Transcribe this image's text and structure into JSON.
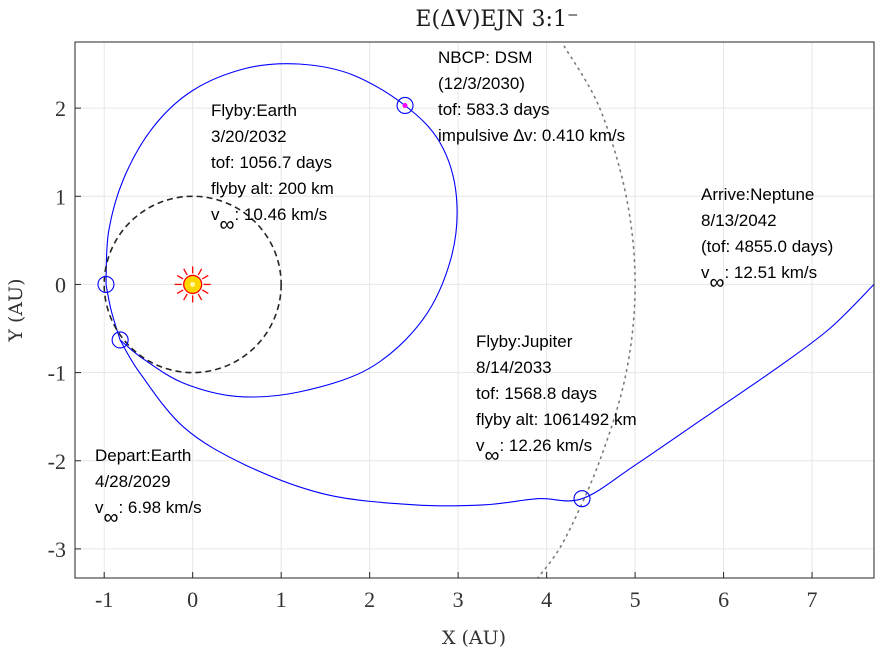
{
  "chart_data": {
    "type": "line",
    "title": "E(ΔV)EJN 3:1⁻",
    "xlabel": "X (AU)",
    "ylabel": "Y (AU)",
    "xlim": [
      -1.33,
      7.7
    ],
    "ylim": [
      -3.33,
      2.75
    ],
    "grid": true,
    "xticks": [
      -1,
      0,
      1,
      2,
      3,
      4,
      5,
      6,
      7
    ],
    "yticks": [
      -3,
      -2,
      -1,
      0,
      1,
      2
    ],
    "xtick_labels": [
      "-1",
      "0",
      "1",
      "2",
      "3",
      "4",
      "5",
      "6",
      "7"
    ],
    "ytick_labels": [
      "-3",
      "-2",
      "-1",
      "0",
      "1",
      "2"
    ],
    "series": [
      {
        "kind": "trajectory",
        "color": "#0000ff",
        "points": [
          [
            -0.82,
            -0.63
          ],
          [
            -0.6,
            -1.0
          ],
          [
            -0.1,
            -1.62
          ],
          [
            0.6,
            -2.05
          ],
          [
            1.5,
            -2.38
          ],
          [
            2.5,
            -2.5
          ],
          [
            3.3,
            -2.5
          ],
          [
            3.9,
            -2.43
          ],
          [
            4.4,
            -2.43
          ],
          [
            5.0,
            -2.05
          ],
          [
            5.8,
            -1.5
          ],
          [
            6.6,
            -0.95
          ],
          [
            7.2,
            -0.5
          ],
          [
            7.7,
            0.0
          ]
        ]
      },
      {
        "kind": "trajectory",
        "color": "#0000ff",
        "points": [
          [
            -0.82,
            -0.63
          ],
          [
            -0.92,
            -0.3
          ],
          [
            -0.98,
            0.0
          ]
        ]
      },
      {
        "kind": "trajectory",
        "color": "#0000ff",
        "points": [
          [
            -0.98,
            0.0
          ],
          [
            -0.95,
            0.6
          ],
          [
            -0.78,
            1.2
          ],
          [
            -0.45,
            1.78
          ],
          [
            0.0,
            2.2
          ],
          [
            0.6,
            2.45
          ],
          [
            1.2,
            2.5
          ],
          [
            1.8,
            2.38
          ],
          [
            2.4,
            2.03
          ],
          [
            2.8,
            1.6
          ],
          [
            2.98,
            1.0
          ],
          [
            2.92,
            0.3
          ],
          [
            2.6,
            -0.4
          ],
          [
            2.0,
            -0.95
          ],
          [
            1.2,
            -1.22
          ],
          [
            0.5,
            -1.27
          ],
          [
            -0.1,
            -1.12
          ],
          [
            -0.55,
            -0.85
          ],
          [
            -0.82,
            -0.63
          ]
        ]
      },
      {
        "kind": "earth-orbit",
        "color": "#262626",
        "style": "dashed",
        "radius": 1.0
      },
      {
        "kind": "jupiter-orbit",
        "color": "#7a7a7a",
        "style": "dotted",
        "points": [
          [
            4.2,
            2.7
          ],
          [
            4.6,
            2.0
          ],
          [
            4.9,
            1.0
          ],
          [
            5.0,
            0.0
          ],
          [
            4.9,
            -1.0
          ],
          [
            4.6,
            -2.0
          ],
          [
            4.2,
            -2.9
          ],
          [
            3.9,
            -3.33
          ]
        ]
      }
    ],
    "events": [
      {
        "name": "depart-earth",
        "x": -0.82,
        "y": -0.63
      },
      {
        "name": "flyby-earth",
        "x": -0.98,
        "y": 0.0
      },
      {
        "name": "dsm",
        "x": 2.4,
        "y": 2.03
      },
      {
        "name": "flyby-jupiter",
        "x": 4.4,
        "y": -2.43
      }
    ],
    "sun": {
      "x": 0,
      "y": 0,
      "color": "#ffd700",
      "ray_color": "#ff0000"
    },
    "annotations": [
      {
        "id": "depart",
        "lines": [
          "Depart:Earth",
          "4/28/2029",
          "v∞: 6.98 km/s"
        ]
      },
      {
        "id": "flyby-earth",
        "lines": [
          "Flyby:Earth",
          "3/20/2032",
          "tof: 1056.7 days",
          "flyby alt: 200 km",
          "v∞: 10.46 km/s"
        ]
      },
      {
        "id": "dsm",
        "lines": [
          "NBCP: DSM",
          "(12/3/2030)",
          "tof: 583.3 days",
          "impulsive ∆v: 0.410 km/s"
        ]
      },
      {
        "id": "flyby-jupiter",
        "lines": [
          "Flyby:Jupiter",
          "8/14/2033",
          "tof: 1568.8 days",
          "flyby alt: 1061492 km",
          "v∞: 12.26 km/s"
        ]
      },
      {
        "id": "arrive",
        "lines": [
          "Arrive:Neptune",
          "8/13/2042",
          "(tof: 4855.0 days)",
          "v∞: 12.51 km/s"
        ]
      }
    ]
  }
}
